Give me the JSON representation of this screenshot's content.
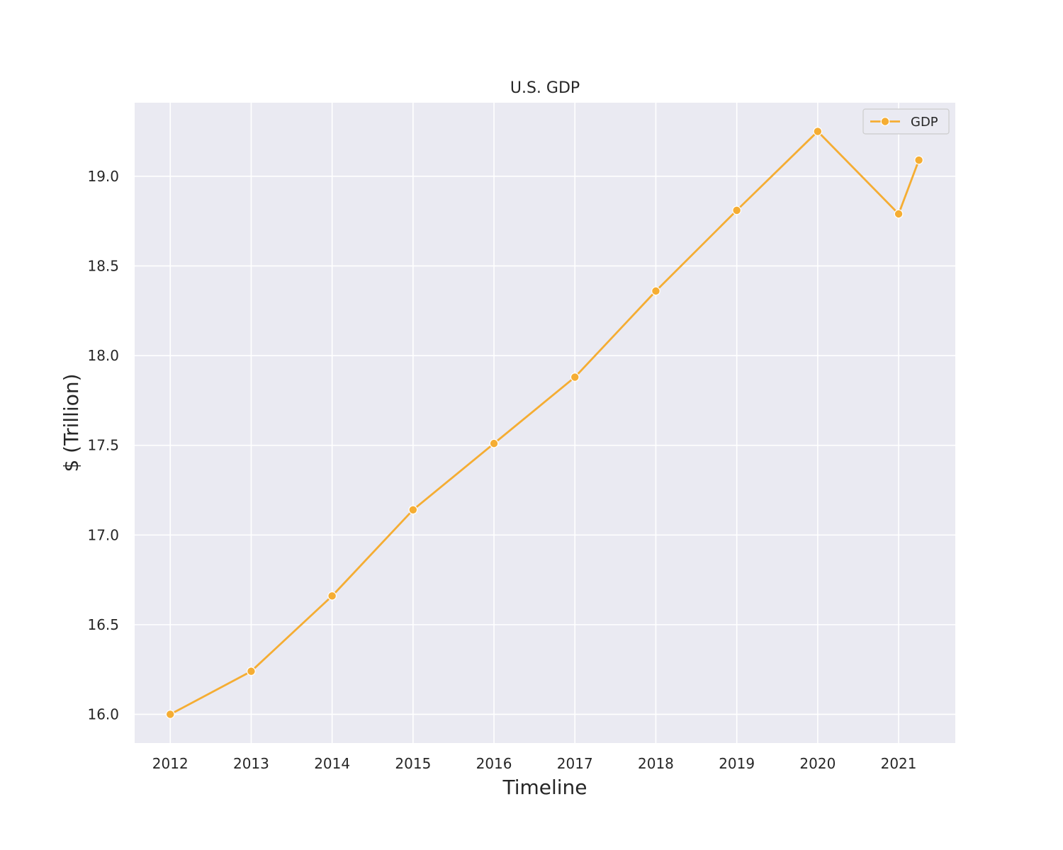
{
  "chart_data": {
    "type": "line",
    "title": "U.S. GDP",
    "xlabel": "Timeline",
    "ylabel": "$ (Trillion)",
    "x_ticks": [
      "2012",
      "2013",
      "2014",
      "2015",
      "2016",
      "2017",
      "2018",
      "2019",
      "2020",
      "2021"
    ],
    "y_ticks": [
      "16.0",
      "16.5",
      "17.0",
      "17.5",
      "18.0",
      "18.5",
      "19.0"
    ],
    "xlim": [
      2011.56,
      2021.7
    ],
    "ylim": [
      15.84,
      19.41
    ],
    "grid": true,
    "legend_position": "top-right",
    "series": [
      {
        "name": "GDP",
        "color": "#F5AD33",
        "marker": "circle",
        "x": [
          2012,
          2013,
          2014,
          2015,
          2016,
          2017,
          2018,
          2019,
          2020,
          2021,
          2021.25
        ],
        "y": [
          16.0,
          16.24,
          16.66,
          17.14,
          17.51,
          17.88,
          18.36,
          18.81,
          19.25,
          18.79,
          19.09
        ]
      }
    ]
  },
  "colors": {
    "plot_background": "#EAEAF2",
    "grid": "#FFFFFF",
    "text": "#262626"
  }
}
